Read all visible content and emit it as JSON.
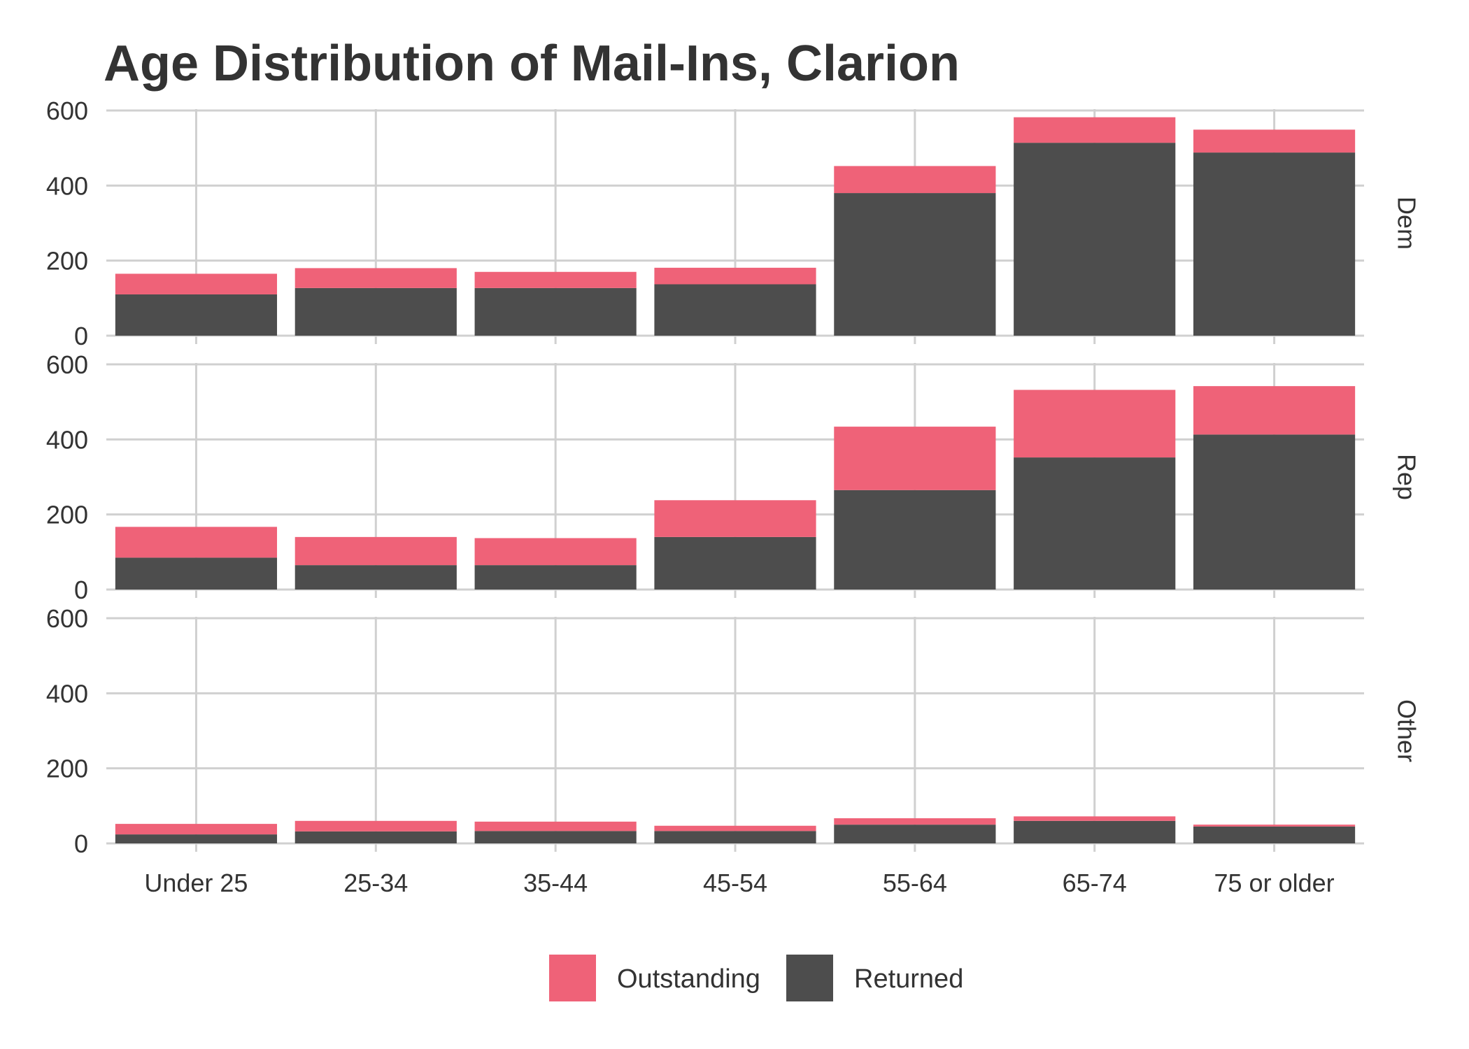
{
  "chart_data": {
    "type": "bar",
    "stacked": true,
    "faceted": true,
    "title": "Age Distribution of Mail-Ins, Clarion",
    "xlabel": "",
    "ylabel": "",
    "ylim": [
      0,
      600
    ],
    "y_ticks": [
      0,
      200,
      400,
      600
    ],
    "grid": true,
    "legend_position": "bottom",
    "categories": [
      "Under 25",
      "25-34",
      "35-44",
      "45-54",
      "55-64",
      "65-74",
      "75 or older"
    ],
    "series_order": [
      "Returned",
      "Outstanding"
    ],
    "colors": {
      "Outstanding": "#ef6278",
      "Returned": "#4d4d4d"
    },
    "legend": [
      "Outstanding",
      "Returned"
    ],
    "facets": [
      {
        "label": "Dem",
        "series": [
          {
            "name": "Returned",
            "values": [
              110,
              127,
              127,
              137,
              380,
              514,
              488
            ]
          },
          {
            "name": "Outstanding",
            "values": [
              55,
              53,
              43,
              44,
              72,
              68,
              61
            ]
          }
        ]
      },
      {
        "label": "Rep",
        "series": [
          {
            "name": "Returned",
            "values": [
              85,
              65,
              65,
              140,
              265,
              352,
              413
            ]
          },
          {
            "name": "Outstanding",
            "values": [
              82,
              75,
              72,
              98,
              169,
              180,
              129
            ]
          }
        ]
      },
      {
        "label": "Other",
        "series": [
          {
            "name": "Returned",
            "values": [
              24,
              32,
              33,
              33,
              50,
              60,
              45
            ]
          },
          {
            "name": "Outstanding",
            "values": [
              28,
              28,
              25,
              14,
              17,
              12,
              5
            ]
          }
        ]
      }
    ]
  }
}
